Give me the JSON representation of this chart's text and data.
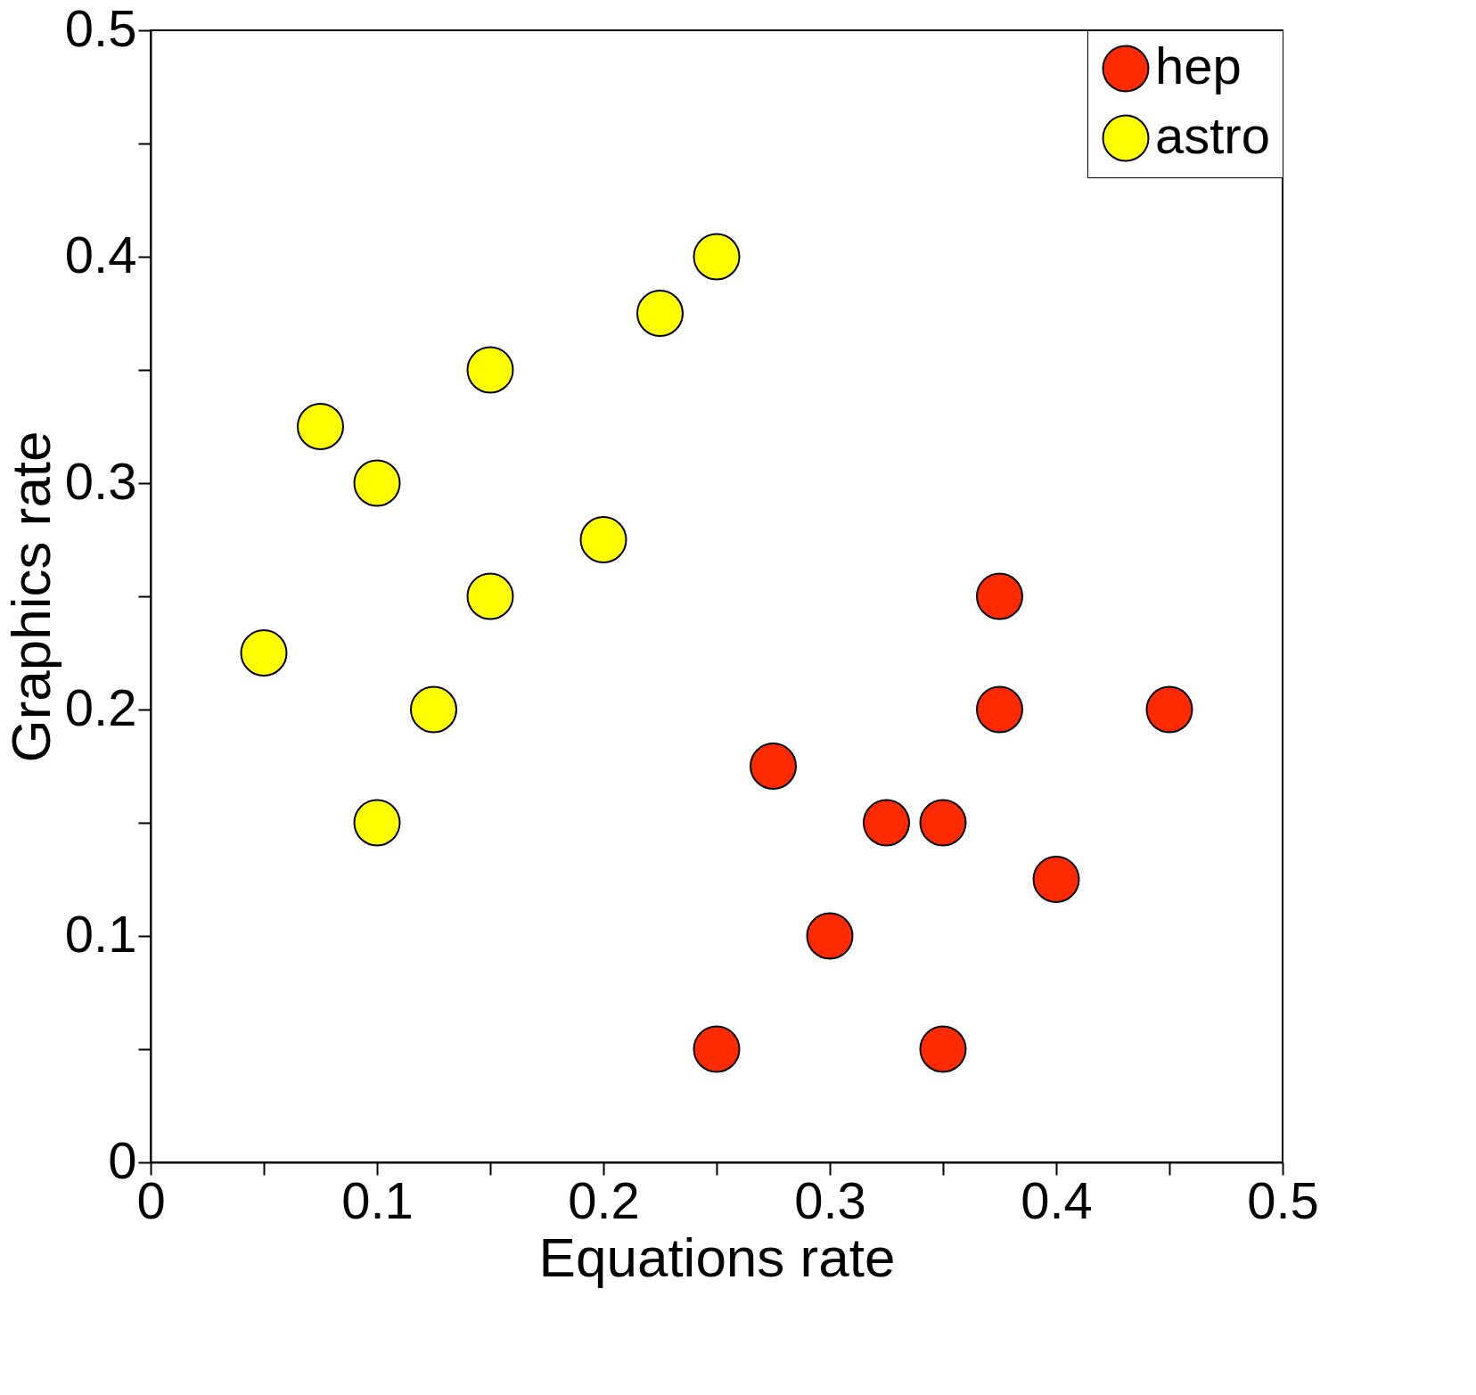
{
  "chart_data": {
    "type": "scatter",
    "xlabel": "Equations rate",
    "ylabel": "Graphics rate",
    "xlim": [
      0,
      0.5
    ],
    "ylim": [
      0,
      0.5
    ],
    "xticks": [
      0,
      {
        "value": 0.05,
        "label": null
      },
      0.1,
      {
        "value": 0.15,
        "label": null
      },
      0.2,
      {
        "value": 0.25,
        "label": null
      },
      0.3,
      {
        "value": 0.35,
        "label": null
      },
      0.4,
      {
        "value": 0.45,
        "label": null
      },
      0.5
    ],
    "yticks": [
      0,
      {
        "value": 0.05,
        "label": null
      },
      0.1,
      {
        "value": 0.15,
        "label": null
      },
      0.2,
      {
        "value": 0.25,
        "label": null
      },
      0.3,
      {
        "value": 0.35,
        "label": null
      },
      0.4,
      {
        "value": 0.45,
        "label": null
      },
      0.5
    ],
    "grid": false,
    "legend": "top right",
    "marker": "circle",
    "series": [
      {
        "name": "hep",
        "color": "#ff2a00",
        "x": [
          0.375,
          0.375,
          0.45,
          0.275,
          0.325,
          0.35,
          0.4,
          0.3,
          0.25,
          0.35
        ],
        "values": [
          0.25,
          0.2,
          0.2,
          0.175,
          0.15,
          0.15,
          0.125,
          0.1,
          0.05,
          0.05
        ]
      },
      {
        "name": "astro",
        "color": "#ffff00",
        "x": [
          0.05,
          0.075,
          0.1,
          0.15,
          0.15,
          0.125,
          0.1,
          0.2,
          0.225,
          0.25
        ],
        "values": [
          0.225,
          0.325,
          0.3,
          0.35,
          0.25,
          0.2,
          0.15,
          0.275,
          0.375,
          0.4
        ]
      }
    ]
  }
}
